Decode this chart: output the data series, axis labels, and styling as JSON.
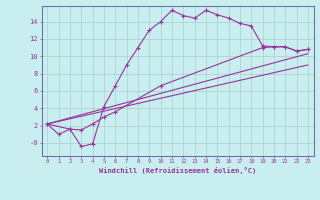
{
  "xlabel": "Windchill (Refroidissement éolien,°C)",
  "bg_color": "#c8eef0",
  "line_color": "#993399",
  "grid_color": "#aacccc",
  "spine_color": "#7070aa",
  "series1_x": [
    0,
    1,
    2,
    3,
    4,
    5,
    6,
    7,
    8,
    9,
    10,
    11,
    12,
    13,
    14,
    15,
    16,
    17,
    18,
    19,
    20,
    21,
    22,
    23
  ],
  "series1_y": [
    2.2,
    1.0,
    1.6,
    -0.4,
    -0.1,
    4.2,
    6.6,
    9.0,
    11.0,
    13.0,
    14.0,
    15.3,
    14.7,
    14.4,
    15.3,
    14.8,
    14.4,
    13.8,
    13.5,
    11.2,
    11.1,
    11.1,
    10.6,
    10.8
  ],
  "series2_x": [
    0,
    2,
    3,
    4,
    5,
    6,
    10,
    19,
    20,
    21,
    22,
    23
  ],
  "series2_y": [
    2.2,
    1.6,
    1.5,
    2.2,
    3.0,
    3.6,
    6.6,
    11.0,
    11.1,
    11.1,
    10.6,
    10.8
  ],
  "series3_x": [
    0,
    23
  ],
  "series3_y": [
    2.2,
    10.3
  ],
  "series4_x": [
    0,
    23
  ],
  "series4_y": [
    2.2,
    9.0
  ],
  "xlim": [
    -0.5,
    23.5
  ],
  "ylim": [
    -1.5,
    15.8
  ],
  "ytick_vals": [
    0,
    2,
    4,
    6,
    8,
    10,
    12,
    14
  ],
  "ytick_labels": [
    "-0",
    "2",
    "4",
    "6",
    "8",
    "10",
    "12",
    "14"
  ],
  "xtick_vals": [
    0,
    1,
    2,
    3,
    4,
    5,
    6,
    7,
    8,
    9,
    10,
    11,
    12,
    13,
    14,
    15,
    16,
    17,
    18,
    19,
    20,
    21,
    22,
    23
  ]
}
